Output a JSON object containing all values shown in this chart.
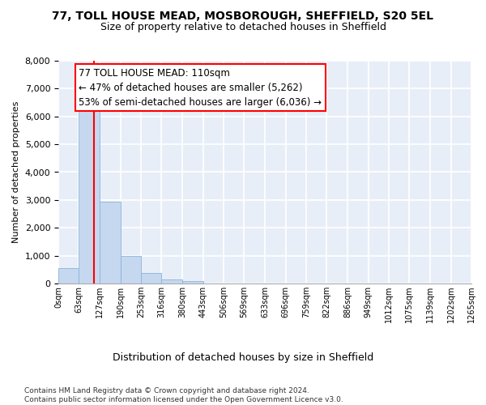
{
  "title1": "77, TOLL HOUSE MEAD, MOSBOROUGH, SHEFFIELD, S20 5EL",
  "title2": "Size of property relative to detached houses in Sheffield",
  "xlabel": "Distribution of detached houses by size in Sheffield",
  "ylabel": "Number of detached properties",
  "bar_values": [
    560,
    6400,
    2950,
    980,
    370,
    160,
    80,
    0,
    0,
    0,
    0,
    0,
    0,
    0,
    0,
    0,
    0,
    0,
    0,
    0
  ],
  "bin_edges": [
    0,
    63,
    127,
    190,
    253,
    316,
    380,
    443,
    506,
    569,
    633,
    696,
    759,
    822,
    886,
    949,
    1012,
    1075,
    1139,
    1202,
    1265
  ],
  "tick_labels": [
    "0sqm",
    "63sqm",
    "127sqm",
    "190sqm",
    "253sqm",
    "316sqm",
    "380sqm",
    "443sqm",
    "506sqm",
    "569sqm",
    "633sqm",
    "696sqm",
    "759sqm",
    "822sqm",
    "886sqm",
    "949sqm",
    "1012sqm",
    "1075sqm",
    "1139sqm",
    "1202sqm",
    "1265sqm"
  ],
  "bar_color": "#c5d8f0",
  "bar_edge_color": "#8ab4d8",
  "property_size": 110,
  "annotation_text": "77 TOLL HOUSE MEAD: 110sqm\n← 47% of detached houses are smaller (5,262)\n53% of semi-detached houses are larger (6,036) →",
  "annotation_box_color": "white",
  "annotation_box_edge": "red",
  "vline_color": "red",
  "ylim": [
    0,
    8000
  ],
  "yticks": [
    0,
    1000,
    2000,
    3000,
    4000,
    5000,
    6000,
    7000,
    8000
  ],
  "footer1": "Contains HM Land Registry data © Crown copyright and database right 2024.",
  "footer2": "Contains public sector information licensed under the Open Government Licence v3.0.",
  "bg_color": "#e8eef8",
  "grid_color": "#ffffff",
  "title1_fontsize": 10,
  "title2_fontsize": 9,
  "annotation_fontsize": 8.5,
  "xlabel_fontsize": 9,
  "ylabel_fontsize": 8,
  "ytick_fontsize": 8,
  "xtick_fontsize": 7
}
